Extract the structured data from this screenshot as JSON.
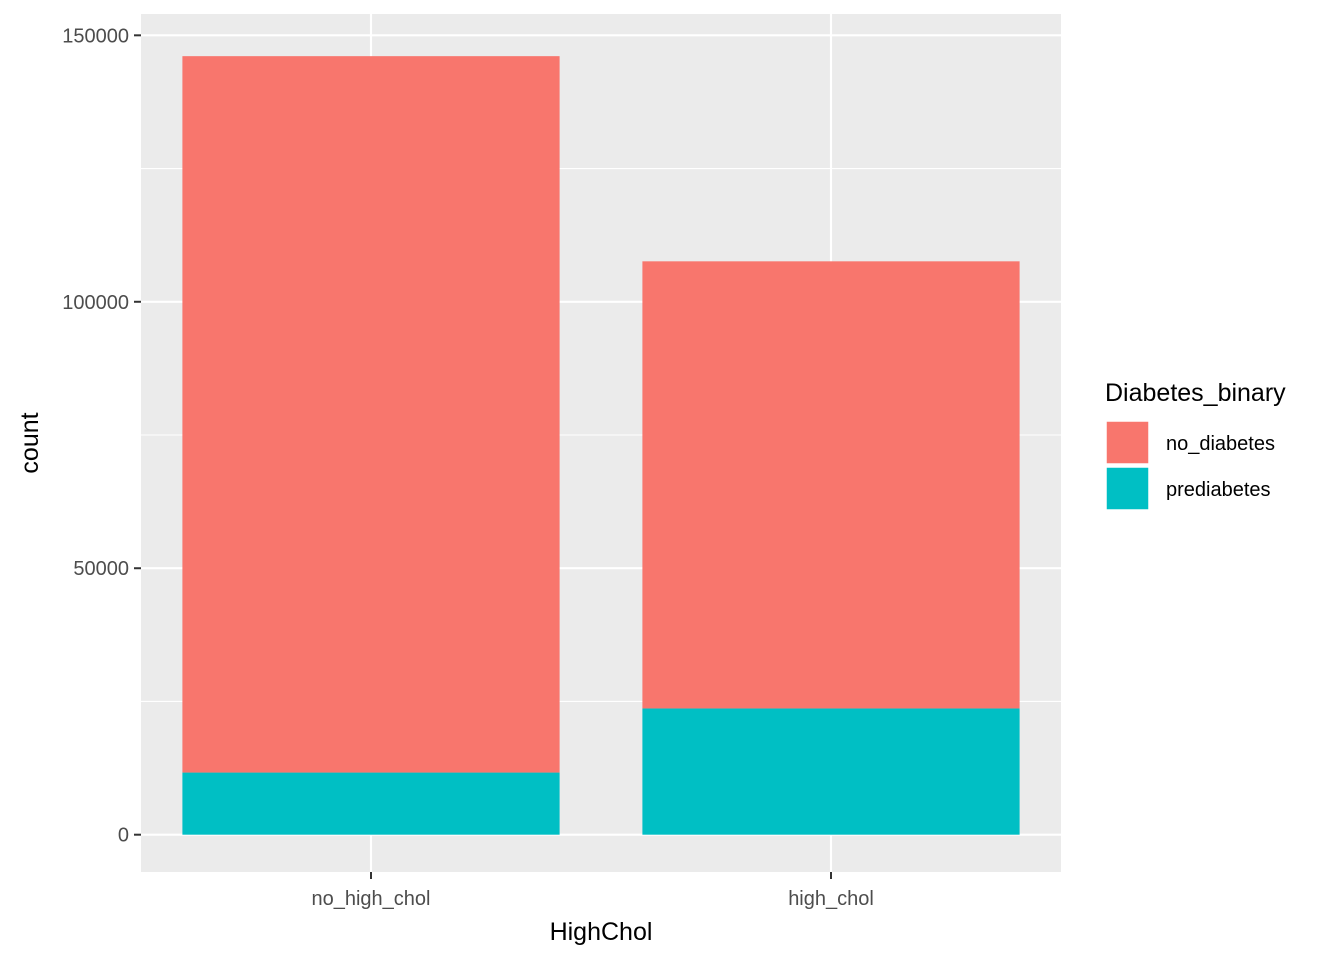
{
  "chart_data": {
    "type": "bar",
    "stacked": true,
    "xlabel": "HighChol",
    "ylabel": "count",
    "categories": [
      "no_high_chol",
      "high_chol"
    ],
    "series": [
      {
        "name": "prediabetes",
        "values": [
          11660,
          23686
        ],
        "color": "#00BFC4"
      },
      {
        "name": "no_diabetes",
        "values": [
          134429,
          83905
        ],
        "color": "#F8766D"
      }
    ],
    "ylim": [
      -7000,
      154000
    ],
    "yticks": [
      0,
      50000,
      100000,
      150000
    ],
    "ytick_labels": [
      "0",
      "50000",
      "100000",
      "150000"
    ],
    "grid": true,
    "legend": {
      "title": "Diabetes_binary",
      "position": "right",
      "entries": [
        {
          "label": "no_diabetes",
          "color": "#F8766D"
        },
        {
          "label": "prediabetes",
          "color": "#00BFC4"
        }
      ]
    },
    "panel_background": "#EBEBEB",
    "grid_color": "#FFFFFF"
  }
}
